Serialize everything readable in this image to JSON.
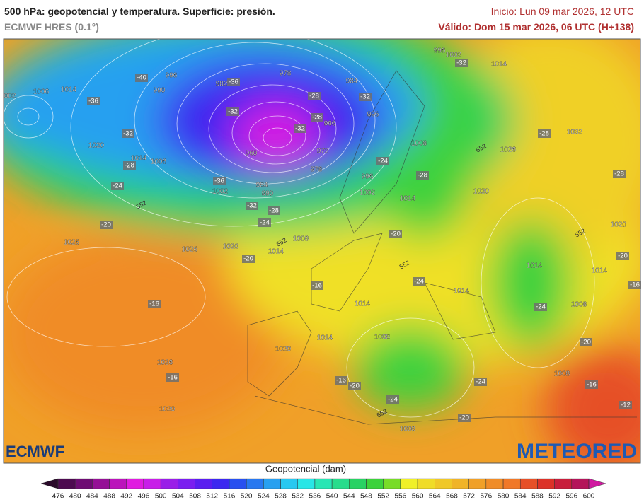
{
  "header": {
    "title": "500 hPa: geopotencial y temperatura. Superficie: presión.",
    "subtitle": "ECMWF HRES (0.1°)",
    "init": "Inicio: Lun 09 mar 2026, 12 UTC",
    "valid": "Válido: Dom 15 mar 2026, 06 UTC (H+138)"
  },
  "map": {
    "pressure_labels": [
      "002",
      "1006",
      "1014",
      "996",
      "990",
      "978",
      "984",
      "982",
      "1020",
      "1014",
      "1006",
      "960",
      "972",
      "978",
      "984",
      "990",
      "1002",
      "966",
      "996",
      "1008",
      "996",
      "1002",
      "1014",
      "996",
      "1002",
      "1014",
      "1026",
      "1032",
      "1020",
      "1020",
      "1014",
      "1014",
      "1008",
      "1014",
      "1014",
      "1008",
      "1014",
      "1020",
      "1026",
      "1026",
      "1014",
      "1020",
      "1026",
      "1020",
      "1008",
      "1008",
      "1008"
    ],
    "temperature_labels": [
      -36,
      -32,
      -28,
      -24,
      -20,
      -40,
      -36,
      -32,
      -32,
      -28,
      -28,
      -32,
      -32,
      -28,
      -28,
      -24,
      -28,
      -36,
      -32,
      -28,
      -24,
      -20,
      -20,
      -16,
      -16,
      -16,
      -20,
      -24,
      -24,
      -24,
      -20,
      -20,
      -16,
      -16,
      -12,
      -24,
      -20,
      -16
    ],
    "contour_labels": [
      552,
      552,
      552,
      552,
      552,
      552
    ]
  },
  "logos": {
    "left": "ECMWF",
    "right": "METEORED"
  },
  "colorbar": {
    "label": "Geopotencial (dam)",
    "ticks": [
      476,
      480,
      484,
      488,
      492,
      496,
      500,
      504,
      508,
      512,
      516,
      520,
      524,
      528,
      532,
      536,
      540,
      544,
      548,
      552,
      556,
      560,
      564,
      568,
      572,
      576,
      580,
      584,
      588,
      592,
      596,
      600
    ],
    "colors": [
      "#2a0a2a",
      "#4d0a50",
      "#6e0c73",
      "#951096",
      "#bb14bb",
      "#e01ce0",
      "#c81ee8",
      "#9a1ee8",
      "#7a1ef0",
      "#5a1ef0",
      "#3c28f0",
      "#2850f0",
      "#2878f0",
      "#28a0f0",
      "#28c8f0",
      "#28e6e6",
      "#28e6b4",
      "#28dc8c",
      "#28d264",
      "#3cd23c",
      "#78dc28",
      "#f0f028",
      "#f0dc28",
      "#f0c828",
      "#f0b428",
      "#f0a028",
      "#f08c28",
      "#f07828",
      "#e65028",
      "#dc3228",
      "#c81e3c",
      "#b4145a",
      "#d01aa0"
    ]
  }
}
